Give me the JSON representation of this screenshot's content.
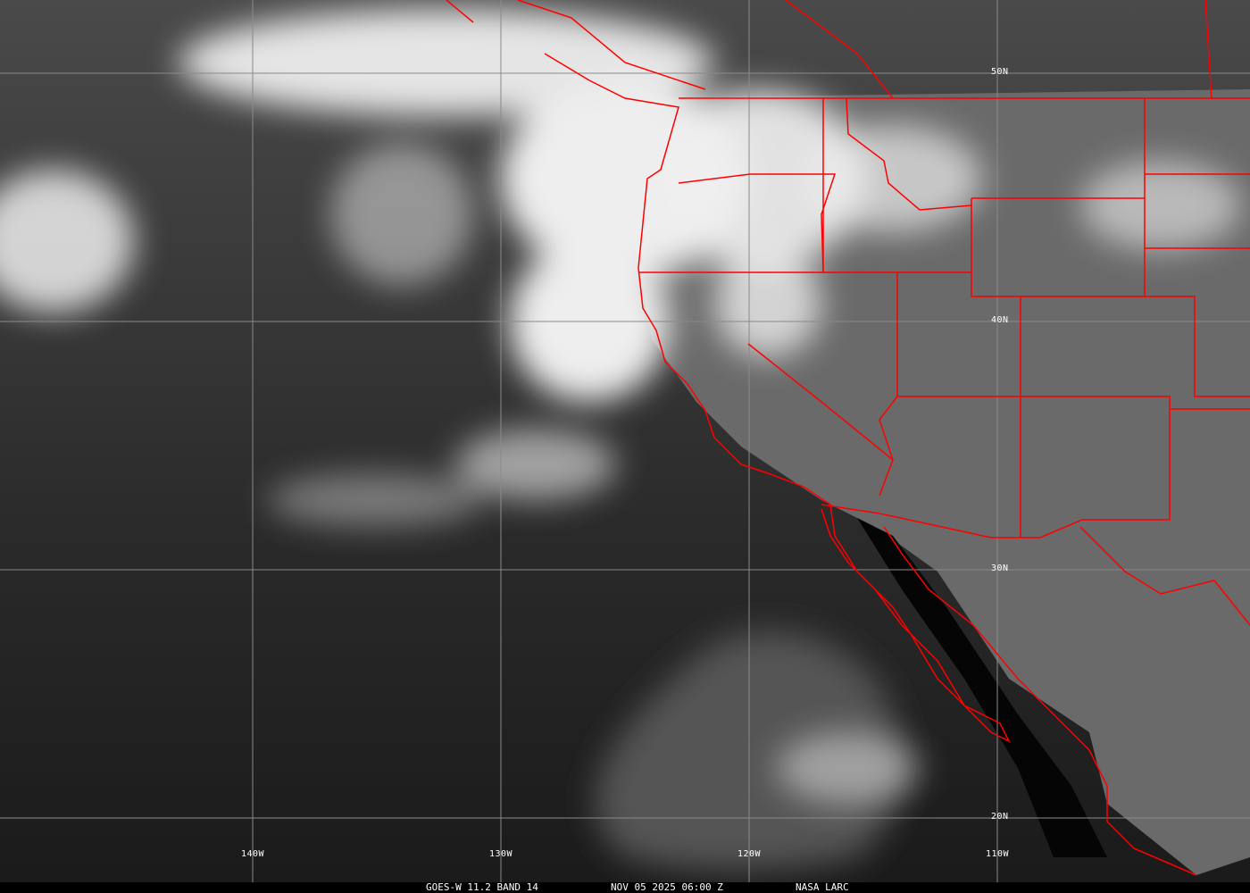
{
  "caption": {
    "satellite_band": "GOES-W 11.2 BAND 14",
    "datetime": "NOV 05 2025 06:00 Z",
    "source": "NASA LARC"
  },
  "grid": {
    "latitudes": [
      "50N",
      "40N",
      "30N",
      "20N"
    ],
    "longitudes": [
      "140W",
      "130W",
      "120W",
      "110W"
    ]
  },
  "colors": {
    "boundaries": "#ff0000",
    "gridlines": "#8a8a8a",
    "clouds": "#f2f2f2"
  }
}
